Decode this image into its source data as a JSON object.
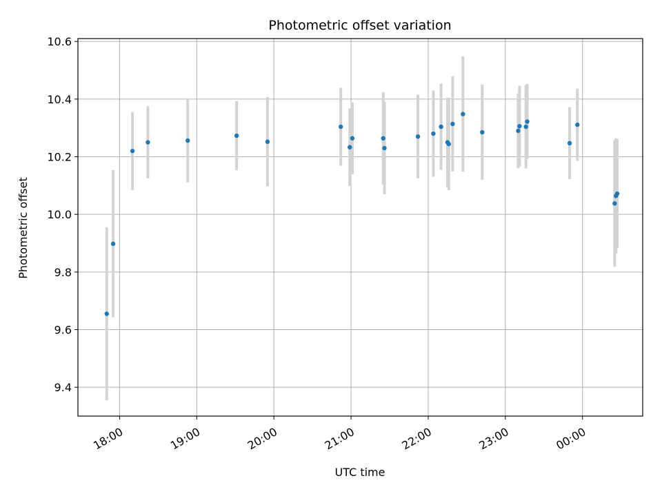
{
  "chart_data": {
    "type": "scatter",
    "title": "Photometric offset variation",
    "xlabel": "UTC time",
    "ylabel": "Photometric offset",
    "x_ticks": [
      "18:00",
      "19:00",
      "20:00",
      "21:00",
      "22:00",
      "23:00",
      "00:00"
    ],
    "x_tick_hours": [
      18,
      19,
      20,
      21,
      22,
      23,
      24
    ],
    "xlim_hours": [
      17.46,
      24.78
    ],
    "y_ticks": [
      "9.4",
      "9.6",
      "9.8",
      "10.0",
      "10.2",
      "10.4",
      "10.6"
    ],
    "y_tick_values": [
      9.4,
      9.6,
      9.8,
      10.0,
      10.2,
      10.4,
      10.6
    ],
    "ylim": [
      9.3,
      10.61
    ],
    "grid": true,
    "colors": {
      "marker": "#1f77b4",
      "errorbar": "#d3d3d3",
      "grid": "#b0b0b0"
    },
    "series": [
      {
        "points": [
          {
            "x": "17:50",
            "y": 9.655,
            "yerr": 0.3
          },
          {
            "x": "17:55",
            "y": 9.898,
            "yerr": 0.255
          },
          {
            "x": "18:10",
            "y": 10.22,
            "yerr": 0.135
          },
          {
            "x": "18:22",
            "y": 10.25,
            "yerr": 0.125
          },
          {
            "x": "18:53",
            "y": 10.256,
            "yerr": 0.145
          },
          {
            "x": "19:31",
            "y": 10.273,
            "yerr": 0.12
          },
          {
            "x": "19:55",
            "y": 10.252,
            "yerr": 0.155
          },
          {
            "x": "20:52",
            "y": 10.304,
            "yerr": 0.135
          },
          {
            "x": "20:59",
            "y": 10.233,
            "yerr": 0.135
          },
          {
            "x": "21:01",
            "y": 10.264,
            "yerr": 0.125
          },
          {
            "x": "21:25",
            "y": 10.264,
            "yerr": 0.16
          },
          {
            "x": "21:26",
            "y": 10.23,
            "yerr": 0.16
          },
          {
            "x": "21:52",
            "y": 10.27,
            "yerr": 0.145
          },
          {
            "x": "22:04",
            "y": 10.28,
            "yerr": 0.15
          },
          {
            "x": "22:10",
            "y": 10.304,
            "yerr": 0.15
          },
          {
            "x": "22:15",
            "y": 10.25,
            "yerr": 0.155
          },
          {
            "x": "22:16",
            "y": 10.244,
            "yerr": 0.16
          },
          {
            "x": "22:19",
            "y": 10.314,
            "yerr": 0.165
          },
          {
            "x": "22:27",
            "y": 10.348,
            "yerr": 0.2
          },
          {
            "x": "22:42",
            "y": 10.285,
            "yerr": 0.165
          },
          {
            "x": "23:10",
            "y": 10.29,
            "yerr": 0.13
          },
          {
            "x": "23:11",
            "y": 10.306,
            "yerr": 0.14
          },
          {
            "x": "23:16",
            "y": 10.304,
            "yerr": 0.145
          },
          {
            "x": "23:17",
            "y": 10.322,
            "yerr": 0.13
          },
          {
            "x": "23:50",
            "y": 10.247,
            "yerr": 0.125
          },
          {
            "x": "23:56",
            "y": 10.311,
            "yerr": 0.125
          },
          {
            "x": "00:25",
            "y": 10.038,
            "yerr": 0.22
          },
          {
            "x": "00:26",
            "y": 10.064,
            "yerr": 0.2
          },
          {
            "x": "00:27",
            "y": 10.072,
            "yerr": 0.19
          }
        ]
      }
    ]
  }
}
